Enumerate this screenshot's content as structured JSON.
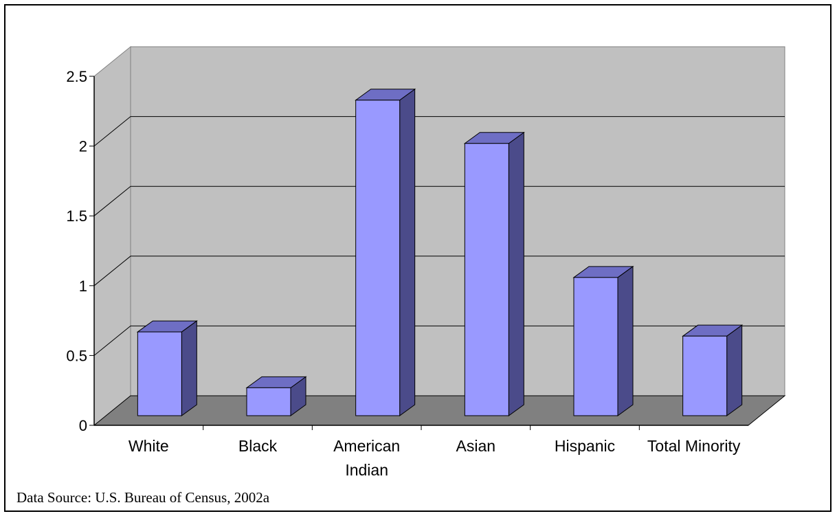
{
  "chart_data": {
    "type": "bar",
    "title": "",
    "xlabel": "",
    "ylabel": "",
    "categories": [
      [
        "White"
      ],
      [
        "Black"
      ],
      [
        "American",
        "Indian"
      ],
      [
        "Asian"
      ],
      [
        "Hispanic"
      ],
      [
        "Total Minority"
      ]
    ],
    "values": [
      0.6,
      0.2,
      2.26,
      1.95,
      0.99,
      0.57
    ],
    "ylim": [
      0,
      2.5
    ],
    "yticks": [
      "0",
      "0.5",
      "1",
      "1.5",
      "2",
      "2.5"
    ],
    "grid": true,
    "style": "3d-column",
    "colors": {
      "bar_front": "#9999ff",
      "bar_top": "#6e6ec4",
      "bar_side": "#4b4b8a",
      "back_wall": "#c0c0c0",
      "side_wall": "#c0c0c0",
      "floor": "#808080"
    }
  },
  "footer": {
    "source": "Data Source: U.S. Bureau of Census, 2002a"
  }
}
